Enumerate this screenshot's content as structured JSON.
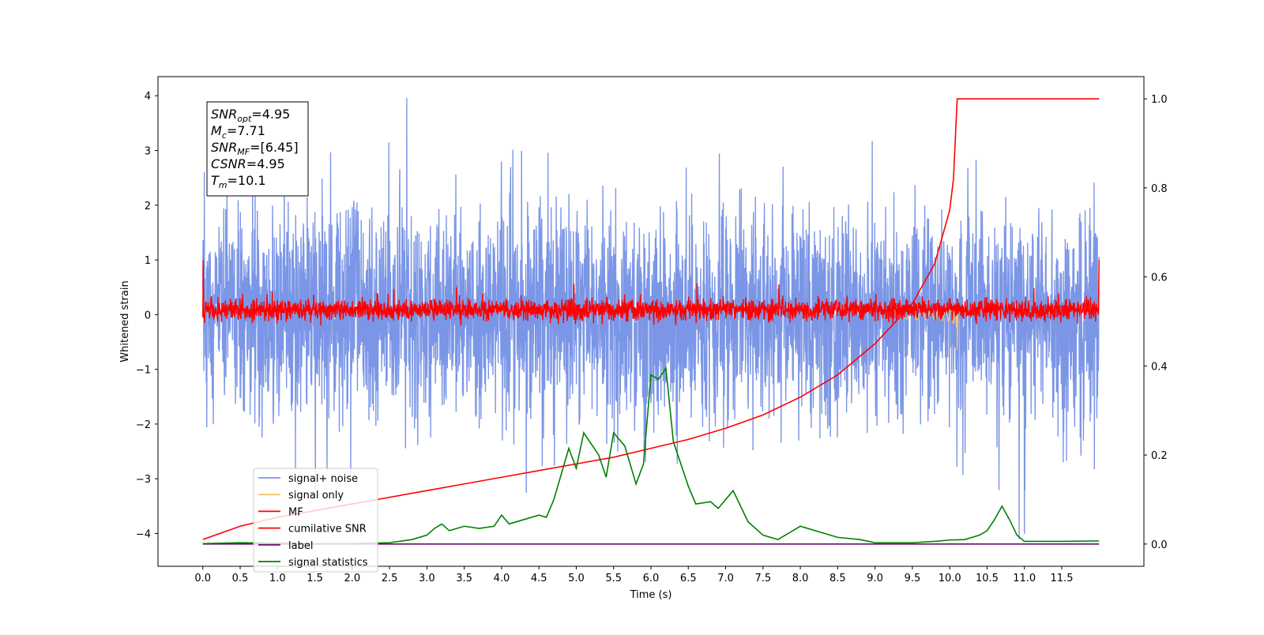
{
  "chart_data": {
    "type": "line",
    "xlabel": "Time (s)",
    "ylabel": "Whitened strain",
    "xlim": [
      -0.6,
      12.6
    ],
    "ylim": [
      -4.6,
      4.35
    ],
    "ylim_right": [
      -0.05,
      1.05
    ],
    "x_ticks": [
      "0.0",
      "0.5",
      "1.0",
      "1.5",
      "2.0",
      "2.5",
      "3.0",
      "3.5",
      "4.0",
      "4.5",
      "5.0",
      "5.5",
      "6.0",
      "6.5",
      "7.0",
      "7.5",
      "8.0",
      "8.5",
      "9.0",
      "9.5",
      "10.0",
      "10.5",
      "11.0",
      "11.5"
    ],
    "y_ticks": [
      "4",
      "3",
      "2",
      "1",
      "0",
      "−1",
      "−2",
      "−3",
      "−4"
    ],
    "y_ticks_right": [
      "1.0",
      "0.8",
      "0.6",
      "0.4",
      "0.2",
      "0.0"
    ],
    "grid": false,
    "legend_position": "lower-left",
    "annotation": {
      "lines": [
        {
          "name": "SNR",
          "sub": "opt",
          "value": "=4.95"
        },
        {
          "name": "M",
          "sub": "c",
          "value": "=7.71"
        },
        {
          "name": "SNR",
          "sub": "MF",
          "value": "=[6.45]"
        },
        {
          "name": "CSNR",
          "sub": "",
          "value": "=4.95"
        },
        {
          "name": "T",
          "sub": "m",
          "value": "=10.1"
        }
      ]
    },
    "series": [
      {
        "name": "signal+ noise",
        "color": "#7b96e6",
        "axis": "left",
        "x_range": [
          0,
          12.0
        ],
        "approx_amplitude": 2.4,
        "peak_values": [
          [
            0.02,
            2.6
          ],
          [
            2.73,
            3.95
          ],
          [
            4.33,
            -3.25
          ],
          [
            10.93,
            -4.1
          ],
          [
            11.0,
            -4.0
          ]
        ]
      },
      {
        "name": "signal only",
        "color": "#f5c56b",
        "axis": "left",
        "x_range": [
          0,
          10.1
        ],
        "chirp_end": 10.1,
        "min_value": -0.65,
        "max_value": 0.4
      },
      {
        "name": "MF",
        "color": "#ff0000",
        "axis": "left",
        "x_range": [
          0,
          12.0
        ],
        "baseline": 0.0,
        "noise_low": -0.22,
        "noise_high": 0.45,
        "edge_spike": 1.0
      },
      {
        "name": "cumilative SNR",
        "color": "#ff0000",
        "axis": "right",
        "points": [
          [
            0,
            0.01
          ],
          [
            0.5,
            0.04
          ],
          [
            1,
            0.06
          ],
          [
            1.5,
            0.075
          ],
          [
            2,
            0.09
          ],
          [
            2.5,
            0.105
          ],
          [
            3,
            0.12
          ],
          [
            3.5,
            0.135
          ],
          [
            4,
            0.15
          ],
          [
            4.5,
            0.165
          ],
          [
            5,
            0.18
          ],
          [
            5.5,
            0.195
          ],
          [
            6,
            0.215
          ],
          [
            6.5,
            0.235
          ],
          [
            7,
            0.26
          ],
          [
            7.5,
            0.29
          ],
          [
            8,
            0.33
          ],
          [
            8.5,
            0.38
          ],
          [
            9,
            0.45
          ],
          [
            9.5,
            0.54
          ],
          [
            9.8,
            0.63
          ],
          [
            10.0,
            0.75
          ],
          [
            10.05,
            0.82
          ],
          [
            10.1,
            1.0
          ],
          [
            12.0,
            1.0
          ]
        ]
      },
      {
        "name": "label",
        "color": "#6a0f6a",
        "axis": "right",
        "points": [
          [
            0,
            0.0
          ],
          [
            12.0,
            0.0
          ]
        ]
      },
      {
        "name": "signal statistics",
        "color": "#008000",
        "axis": "right",
        "points": [
          [
            0,
            0.001
          ],
          [
            0.5,
            0.003
          ],
          [
            1,
            0.002
          ],
          [
            1.5,
            0.001
          ],
          [
            2,
            0.001
          ],
          [
            2.5,
            0.003
          ],
          [
            2.8,
            0.01
          ],
          [
            3.0,
            0.02
          ],
          [
            3.1,
            0.035
          ],
          [
            3.2,
            0.045
          ],
          [
            3.3,
            0.03
          ],
          [
            3.5,
            0.04
          ],
          [
            3.7,
            0.035
          ],
          [
            3.9,
            0.04
          ],
          [
            4.0,
            0.065
          ],
          [
            4.1,
            0.045
          ],
          [
            4.3,
            0.055
          ],
          [
            4.5,
            0.065
          ],
          [
            4.6,
            0.06
          ],
          [
            4.7,
            0.1
          ],
          [
            4.9,
            0.215
          ],
          [
            5.0,
            0.17
          ],
          [
            5.1,
            0.25
          ],
          [
            5.3,
            0.2
          ],
          [
            5.4,
            0.15
          ],
          [
            5.5,
            0.25
          ],
          [
            5.65,
            0.22
          ],
          [
            5.8,
            0.135
          ],
          [
            5.9,
            0.18
          ],
          [
            6.0,
            0.38
          ],
          [
            6.1,
            0.37
          ],
          [
            6.2,
            0.395
          ],
          [
            6.3,
            0.23
          ],
          [
            6.5,
            0.13
          ],
          [
            6.6,
            0.09
          ],
          [
            6.8,
            0.095
          ],
          [
            6.9,
            0.08
          ],
          [
            7.0,
            0.1
          ],
          [
            7.1,
            0.12
          ],
          [
            7.3,
            0.05
          ],
          [
            7.5,
            0.02
          ],
          [
            7.7,
            0.01
          ],
          [
            7.9,
            0.03
          ],
          [
            8.0,
            0.04
          ],
          [
            8.3,
            0.025
          ],
          [
            8.5,
            0.015
          ],
          [
            8.8,
            0.01
          ],
          [
            9.0,
            0.003
          ],
          [
            9.5,
            0.003
          ],
          [
            9.8,
            0.006
          ],
          [
            10.0,
            0.009
          ],
          [
            10.2,
            0.01
          ],
          [
            10.4,
            0.02
          ],
          [
            10.5,
            0.03
          ],
          [
            10.6,
            0.055
          ],
          [
            10.7,
            0.085
          ],
          [
            10.8,
            0.055
          ],
          [
            10.9,
            0.02
          ],
          [
            11.0,
            0.006
          ],
          [
            11.5,
            0.006
          ],
          [
            12.0,
            0.007
          ]
        ]
      }
    ]
  }
}
